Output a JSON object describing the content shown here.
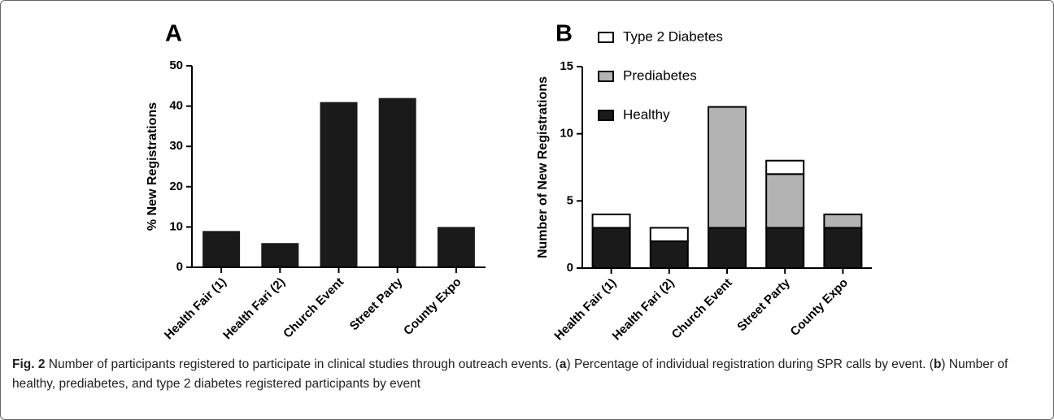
{
  "chart_data": [
    {
      "type": "bar",
      "panel": "A",
      "ylabel": "% New Registrations",
      "categories": [
        "Health Fair (1)",
        "Health Fari (2)",
        "Church Event",
        "Street Party",
        "County Expo"
      ],
      "values": [
        9,
        6,
        41,
        42,
        10
      ],
      "color": "#1a1a1a",
      "ylim": [
        0,
        50
      ],
      "yticks": [
        0,
        10,
        20,
        30,
        40,
        50
      ]
    },
    {
      "type": "stacked_bar",
      "panel": "B",
      "ylabel": "Number of New Registrations",
      "categories": [
        "Health Fair (1)",
        "Health Fari (2)",
        "Church Event",
        "Street Party",
        "County Expo"
      ],
      "series": [
        {
          "name": "Healthy",
          "color": "#1a1a1a",
          "values": [
            3,
            2,
            3,
            3,
            3
          ]
        },
        {
          "name": "Prediabetes",
          "color": "#b3b3b3",
          "values": [
            0,
            0,
            9,
            4,
            1
          ]
        },
        {
          "name": "Type 2 Diabetes",
          "color": "#ffffff",
          "values": [
            1,
            1,
            0,
            1,
            0
          ]
        }
      ],
      "ylim": [
        0,
        15
      ],
      "yticks": [
        0,
        5,
        10,
        15
      ]
    }
  ],
  "caption": {
    "segments": [
      {
        "text": "Fig. 2",
        "bold": true
      },
      {
        "text": " Number of participants registered to participate in clinical studies through outreach events. ("
      },
      {
        "text": "a",
        "bold": true
      },
      {
        "text": ") Percentage of individual registration during SPR calls by event. ("
      },
      {
        "text": "b",
        "bold": true
      },
      {
        "text": ") Number of healthy, prediabetes, and type 2 diabetes registered participants by event"
      }
    ]
  }
}
